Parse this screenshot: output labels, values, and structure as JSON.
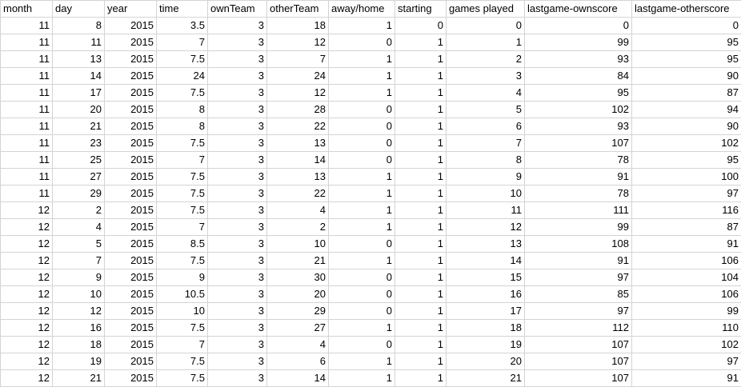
{
  "sheet": {
    "headers": [
      "month",
      "day",
      "year",
      "time",
      "ownTeam",
      "otherTeam",
      "away/home",
      "starting",
      "games played",
      "lastgame-ownscore",
      "lastgame-otherscore"
    ],
    "rows": [
      [
        "11",
        "8",
        "2015",
        "3.5",
        "3",
        "18",
        "1",
        "0",
        "0",
        "0",
        "0"
      ],
      [
        "11",
        "11",
        "2015",
        "7",
        "3",
        "12",
        "0",
        "1",
        "1",
        "99",
        "95"
      ],
      [
        "11",
        "13",
        "2015",
        "7.5",
        "3",
        "7",
        "1",
        "1",
        "2",
        "93",
        "95"
      ],
      [
        "11",
        "14",
        "2015",
        "24",
        "3",
        "24",
        "1",
        "1",
        "3",
        "84",
        "90"
      ],
      [
        "11",
        "17",
        "2015",
        "7.5",
        "3",
        "12",
        "1",
        "1",
        "4",
        "95",
        "87"
      ],
      [
        "11",
        "20",
        "2015",
        "8",
        "3",
        "28",
        "0",
        "1",
        "5",
        "102",
        "94"
      ],
      [
        "11",
        "21",
        "2015",
        "8",
        "3",
        "22",
        "0",
        "1",
        "6",
        "93",
        "90"
      ],
      [
        "11",
        "23",
        "2015",
        "7.5",
        "3",
        "13",
        "0",
        "1",
        "7",
        "107",
        "102"
      ],
      [
        "11",
        "25",
        "2015",
        "7",
        "3",
        "14",
        "0",
        "1",
        "8",
        "78",
        "95"
      ],
      [
        "11",
        "27",
        "2015",
        "7.5",
        "3",
        "13",
        "1",
        "1",
        "9",
        "91",
        "100"
      ],
      [
        "11",
        "29",
        "2015",
        "7.5",
        "3",
        "22",
        "1",
        "1",
        "10",
        "78",
        "97"
      ],
      [
        "12",
        "2",
        "2015",
        "7.5",
        "3",
        "4",
        "1",
        "1",
        "11",
        "111",
        "116"
      ],
      [
        "12",
        "4",
        "2015",
        "7",
        "3",
        "2",
        "1",
        "1",
        "12",
        "99",
        "87"
      ],
      [
        "12",
        "5",
        "2015",
        "8.5",
        "3",
        "10",
        "0",
        "1",
        "13",
        "108",
        "91"
      ],
      [
        "12",
        "7",
        "2015",
        "7.5",
        "3",
        "21",
        "1",
        "1",
        "14",
        "91",
        "106"
      ],
      [
        "12",
        "9",
        "2015",
        "9",
        "3",
        "30",
        "0",
        "1",
        "15",
        "97",
        "104"
      ],
      [
        "12",
        "10",
        "2015",
        "10.5",
        "3",
        "20",
        "0",
        "1",
        "16",
        "85",
        "106"
      ],
      [
        "12",
        "12",
        "2015",
        "10",
        "3",
        "29",
        "0",
        "1",
        "17",
        "97",
        "99"
      ],
      [
        "12",
        "16",
        "2015",
        "7.5",
        "3",
        "27",
        "1",
        "1",
        "18",
        "112",
        "110"
      ],
      [
        "12",
        "18",
        "2015",
        "7",
        "3",
        "4",
        "0",
        "1",
        "19",
        "107",
        "102"
      ],
      [
        "12",
        "19",
        "2015",
        "7.5",
        "3",
        "6",
        "1",
        "1",
        "20",
        "107",
        "97"
      ],
      [
        "12",
        "21",
        "2015",
        "7.5",
        "3",
        "14",
        "1",
        "1",
        "21",
        "107",
        "91"
      ]
    ]
  }
}
